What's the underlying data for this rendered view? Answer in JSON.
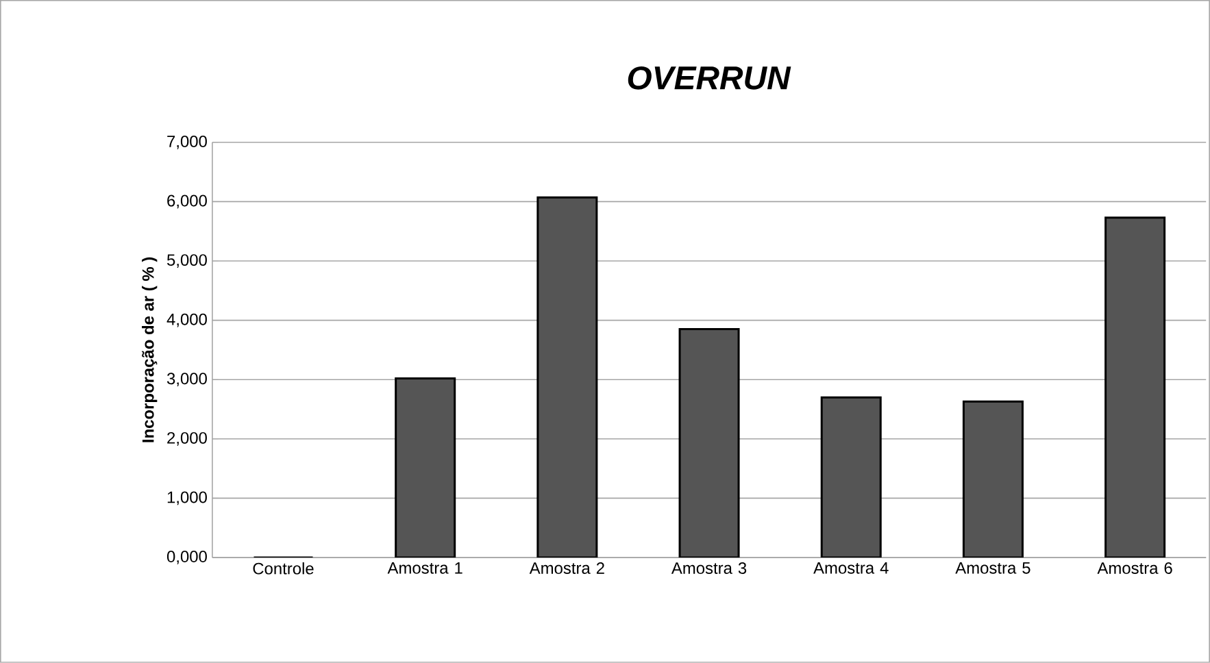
{
  "chart_data": {
    "type": "bar",
    "title": "OVERRUN",
    "ylabel": "Incorporação de ar ( % )",
    "categories": [
      "Controle",
      "Amostra 1",
      "Amostra 2",
      "Amostra 3",
      "Amostra 4",
      "Amostra 5",
      "Amostra 6"
    ],
    "values": [
      0,
      3020,
      6070,
      3850,
      2700,
      2630,
      5730
    ],
    "color": "#555555",
    "ylim": [
      0,
      7000
    ],
    "yticks": [
      {
        "value": 0,
        "label": "0,000"
      },
      {
        "value": 1000,
        "label": "1,000"
      },
      {
        "value": 2000,
        "label": "2,000"
      },
      {
        "value": 3000,
        "label": "3,000"
      },
      {
        "value": 4000,
        "label": "4,000"
      },
      {
        "value": 5000,
        "label": "5,000"
      },
      {
        "value": 6000,
        "label": "6,000"
      },
      {
        "value": 7000,
        "label": "7,000"
      }
    ],
    "grid": "y"
  }
}
